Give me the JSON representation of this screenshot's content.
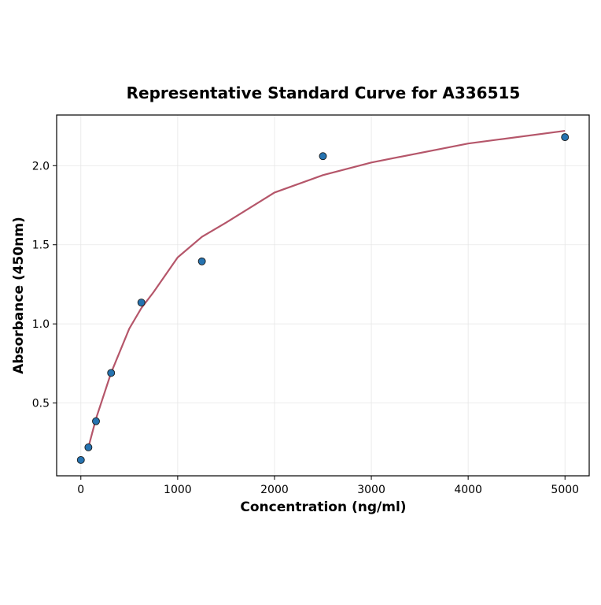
{
  "chart_data": {
    "type": "scatter",
    "title": "Representative Standard Curve for A336515",
    "x_label": "Concentration (ng/ml)",
    "y_label": "Absorbance (450nm)",
    "x": [
      0,
      78.125,
      156.25,
      312.5,
      625,
      1250,
      2500,
      5000
    ],
    "values": [
      0.14,
      0.22,
      0.385,
      0.69,
      1.135,
      1.395,
      2.06,
      2.18
    ],
    "color": "#2673b0",
    "curve": {
      "color": "#b5566a",
      "x": [
        78,
        156,
        312,
        500,
        625,
        750,
        1000,
        1250,
        1500,
        2000,
        2500,
        3000,
        4000,
        5000
      ],
      "values": [
        0.22,
        0.4,
        0.69,
        0.97,
        1.1,
        1.2,
        1.42,
        1.55,
        1.64,
        1.83,
        1.94,
        2.02,
        2.14,
        2.22
      ]
    },
    "xlim": [
      -250,
      5250
    ],
    "ylim": [
      0.04,
      2.32
    ],
    "xticks": [
      0,
      1000,
      2000,
      3000,
      4000,
      5000
    ],
    "yticks": [
      0.5,
      {
        "value": 1.0,
        "label": "1.0"
      },
      1.5,
      {
        "value": 2.0,
        "label": "2.0"
      }
    ],
    "grid": true
  }
}
